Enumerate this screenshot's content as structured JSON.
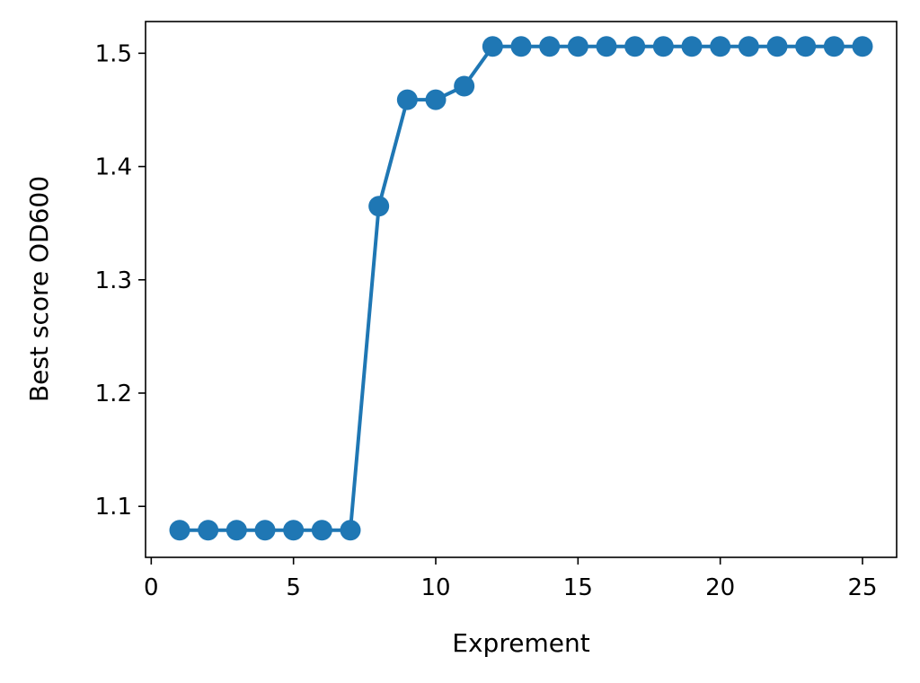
{
  "chart_data": {
    "type": "line",
    "xlabel": "Exprement",
    "ylabel": "Best score OD600",
    "xlim": [
      -0.2,
      26.2
    ],
    "ylim": [
      1.055,
      1.528
    ],
    "xticks": [
      0,
      5,
      10,
      15,
      20,
      25
    ],
    "xtick_labels": [
      "0",
      "5",
      "10",
      "15",
      "20",
      "25"
    ],
    "yticks": [
      1.1,
      1.2,
      1.3,
      1.4,
      1.5
    ],
    "ytick_labels": [
      "1.1",
      "1.2",
      "1.3",
      "1.4",
      "1.5"
    ],
    "grid": false,
    "series": [
      {
        "color": "#1f77b4",
        "marker": "circle",
        "x": [
          1,
          2,
          3,
          4,
          5,
          6,
          7,
          8,
          9,
          10,
          11,
          12,
          13,
          14,
          15,
          16,
          17,
          18,
          19,
          20,
          21,
          22,
          23,
          24,
          25
        ],
        "y": [
          1.079,
          1.079,
          1.079,
          1.079,
          1.079,
          1.079,
          1.079,
          1.365,
          1.459,
          1.459,
          1.471,
          1.506,
          1.506,
          1.506,
          1.506,
          1.506,
          1.506,
          1.506,
          1.506,
          1.506,
          1.506,
          1.506,
          1.506,
          1.506,
          1.506
        ]
      }
    ]
  }
}
